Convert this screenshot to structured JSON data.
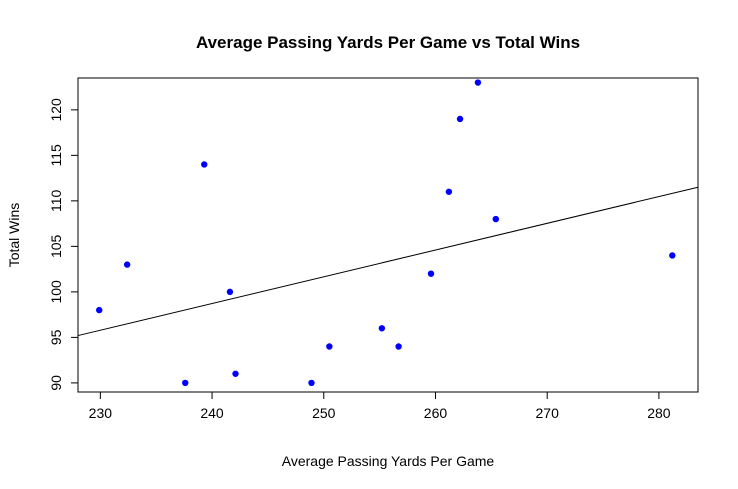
{
  "chart_data": {
    "type": "scatter",
    "title": "Average Passing Yards Per Game vs Total Wins",
    "xlabel": "Average Passing Yards Per Game",
    "ylabel": "Total Wins",
    "xlim": [
      228,
      283.5
    ],
    "ylim": [
      89,
      123.5
    ],
    "xticks": [
      230,
      240,
      250,
      260,
      270,
      280
    ],
    "yticks": [
      90,
      95,
      100,
      105,
      110,
      115,
      120
    ],
    "grid": false,
    "legend": "none",
    "point_color": "#0000ff",
    "line_color": "#000000",
    "points": [
      {
        "x": 229.9,
        "y": 98
      },
      {
        "x": 232.4,
        "y": 103
      },
      {
        "x": 237.6,
        "y": 90
      },
      {
        "x": 239.3,
        "y": 114
      },
      {
        "x": 241.6,
        "y": 100
      },
      {
        "x": 242.1,
        "y": 91
      },
      {
        "x": 248.9,
        "y": 90
      },
      {
        "x": 250.5,
        "y": 94
      },
      {
        "x": 255.2,
        "y": 96
      },
      {
        "x": 256.7,
        "y": 94
      },
      {
        "x": 259.6,
        "y": 102
      },
      {
        "x": 261.2,
        "y": 111
      },
      {
        "x": 262.2,
        "y": 119
      },
      {
        "x": 263.8,
        "y": 123
      },
      {
        "x": 265.4,
        "y": 108
      },
      {
        "x": 281.2,
        "y": 104
      }
    ],
    "regression_line": {
      "x": [
        228,
        283.5
      ],
      "y": [
        95.2,
        111.5
      ]
    }
  }
}
